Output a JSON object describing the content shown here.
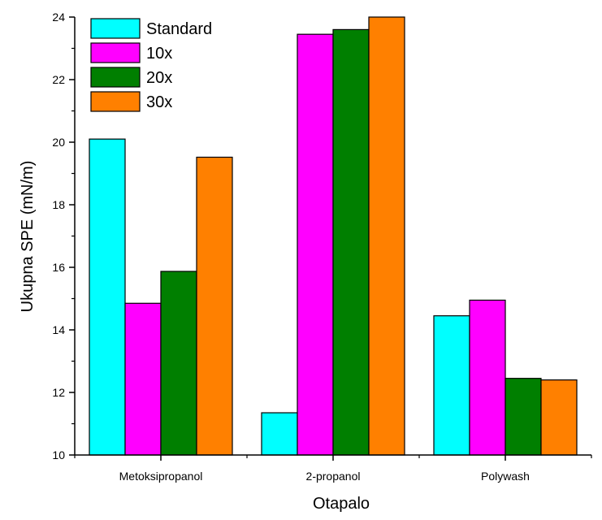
{
  "chart_data": {
    "type": "bar",
    "title": "",
    "xlabel": "Otapalo",
    "ylabel": "Ukupna SPE (mN/m)",
    "ylim": [
      10,
      24
    ],
    "yticks": [
      "10",
      "12",
      "14",
      "16",
      "18",
      "20",
      "22",
      "24"
    ],
    "categories": [
      "Metoksipropanol",
      "2-propanol",
      "Polywash"
    ],
    "series": [
      {
        "name": "Standard",
        "color": "#00ffff",
        "values": [
          20.1,
          11.35,
          14.45
        ]
      },
      {
        "name": "10x",
        "color": "#ff00ff",
        "values": [
          14.85,
          23.45,
          14.95
        ]
      },
      {
        "name": "20x",
        "color": "#007f00",
        "values": [
          15.87,
          23.6,
          12.45
        ]
      },
      {
        "name": "30x",
        "color": "#ff8000",
        "values": [
          19.52,
          24.0,
          12.4
        ]
      }
    ],
    "legend": "top-left",
    "grid": false
  }
}
